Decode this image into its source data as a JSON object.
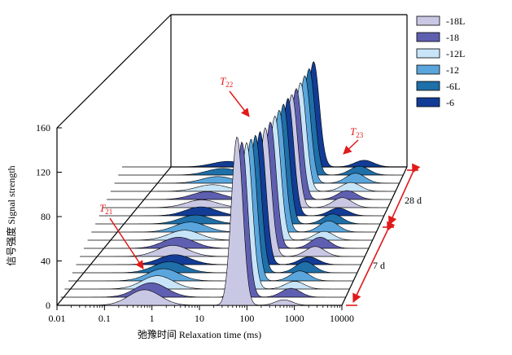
{
  "chart_data": {
    "type": "area",
    "xlabel": "弛豫时间 Relaxation time (ms)",
    "ylabel": "信号强度 Signal strength",
    "x_scale": "log",
    "xlim": [
      0.01,
      10000
    ],
    "ylim": [
      0,
      160
    ],
    "x_ticks": [
      "0.01",
      "0.1",
      "1",
      "10",
      "100",
      "1000",
      "10000"
    ],
    "y_ticks": [
      "0",
      "40",
      "80",
      "120",
      "160"
    ],
    "legend_position": "top-right",
    "legend": [
      {
        "name": "-18L",
        "color": "#c9c8e4"
      },
      {
        "name": "-18",
        "color": "#5f5fb1"
      },
      {
        "name": "-12L",
        "color": "#c8e4f8"
      },
      {
        "name": "-12",
        "color": "#5aa6dc"
      },
      {
        "name": "-6L",
        "color": "#1f6fa8"
      },
      {
        "name": "-6",
        "color": "#123c96"
      }
    ],
    "annotations": [
      {
        "text": "T",
        "sub": "21"
      },
      {
        "text": "T",
        "sub": "22"
      },
      {
        "text": "T",
        "sub": "23"
      }
    ],
    "depth_labels": [
      "7 d",
      "28 d"
    ],
    "series": [
      {
        "name": "-18L",
        "peaks": [
          {
            "t": 0.7,
            "amp": 14,
            "w": 0.33
          },
          {
            "t": 62,
            "amp": 152,
            "w": 0.12
          },
          {
            "t": 600,
            "amp": 5,
            "w": 0.18
          }
        ]
      },
      {
        "name": "-18",
        "peaks": [
          {
            "t": 0.8,
            "amp": 13,
            "w": 0.33
          },
          {
            "t": 65,
            "amp": 140,
            "w": 0.12
          },
          {
            "t": 700,
            "amp": 8,
            "w": 0.2
          }
        ]
      },
      {
        "name": "-12L",
        "peaks": [
          {
            "t": 0.9,
            "amp": 12,
            "w": 0.33
          },
          {
            "t": 68,
            "amp": 132,
            "w": 0.12
          },
          {
            "t": 700,
            "amp": 7,
            "w": 0.2
          }
        ]
      },
      {
        "name": "-12",
        "peaks": [
          {
            "t": 1.0,
            "amp": 11,
            "w": 0.33
          },
          {
            "t": 70,
            "amp": 128,
            "w": 0.12
          },
          {
            "t": 750,
            "amp": 9,
            "w": 0.2
          }
        ]
      },
      {
        "name": "-6L",
        "peaks": [
          {
            "t": 1.1,
            "amp": 10,
            "w": 0.33
          },
          {
            "t": 72,
            "amp": 124,
            "w": 0.12
          },
          {
            "t": 800,
            "amp": 10,
            "w": 0.2
          }
        ]
      },
      {
        "name": "-6",
        "peaks": [
          {
            "t": 1.2,
            "amp": 9,
            "w": 0.33
          },
          {
            "t": 75,
            "amp": 120,
            "w": 0.12
          },
          {
            "t": 800,
            "amp": 7,
            "w": 0.2
          }
        ]
      },
      {
        "name": "-18L",
        "peaks": [
          {
            "t": 0.9,
            "amp": 10,
            "w": 0.33
          },
          {
            "t": 80,
            "amp": 116,
            "w": 0.12
          },
          {
            "t": 900,
            "amp": 9,
            "w": 0.2
          }
        ]
      },
      {
        "name": "-18",
        "peaks": [
          {
            "t": 1.0,
            "amp": 10,
            "w": 0.33
          },
          {
            "t": 85,
            "amp": 114,
            "w": 0.12
          },
          {
            "t": 950,
            "amp": 10,
            "w": 0.2
          }
        ]
      },
      {
        "name": "-12L",
        "peaks": [
          {
            "t": 1.1,
            "amp": 9,
            "w": 0.33
          },
          {
            "t": 88,
            "amp": 112,
            "w": 0.12
          },
          {
            "t": 950,
            "amp": 8,
            "w": 0.2
          }
        ]
      },
      {
        "name": "-12",
        "peaks": [
          {
            "t": 1.2,
            "amp": 9,
            "w": 0.33
          },
          {
            "t": 90,
            "amp": 110,
            "w": 0.12
          },
          {
            "t": 1000,
            "amp": 10,
            "w": 0.2
          }
        ]
      },
      {
        "name": "-6L",
        "peaks": [
          {
            "t": 1.3,
            "amp": 8,
            "w": 0.33
          },
          {
            "t": 92,
            "amp": 108,
            "w": 0.12
          },
          {
            "t": 1000,
            "amp": 9,
            "w": 0.2
          }
        ]
      },
      {
        "name": "-6",
        "peaks": [
          {
            "t": 1.4,
            "amp": 8,
            "w": 0.33
          },
          {
            "t": 95,
            "amp": 106,
            "w": 0.12
          },
          {
            "t": 1100,
            "amp": 7,
            "w": 0.2
          }
        ]
      },
      {
        "name": "-18L",
        "peaks": [
          {
            "t": 1.2,
            "amp": 7,
            "w": 0.33
          },
          {
            "t": 95,
            "amp": 102,
            "w": 0.12
          },
          {
            "t": 1100,
            "amp": 9,
            "w": 0.2
          }
        ]
      },
      {
        "name": "-18",
        "peaks": [
          {
            "t": 1.3,
            "amp": 7,
            "w": 0.33
          },
          {
            "t": 98,
            "amp": 100,
            "w": 0.12
          },
          {
            "t": 1150,
            "amp": 8,
            "w": 0.2
          }
        ]
      },
      {
        "name": "-12L",
        "peaks": [
          {
            "t": 1.4,
            "amp": 6,
            "w": 0.33
          },
          {
            "t": 100,
            "amp": 98,
            "w": 0.12
          },
          {
            "t": 1150,
            "amp": 8,
            "w": 0.2
          }
        ]
      },
      {
        "name": "-12",
        "peaks": [
          {
            "t": 1.5,
            "amp": 6,
            "w": 0.33
          },
          {
            "t": 102,
            "amp": 97,
            "w": 0.12
          },
          {
            "t": 1200,
            "amp": 9,
            "w": 0.2
          }
        ]
      },
      {
        "name": "-6L",
        "peaks": [
          {
            "t": 1.6,
            "amp": 6,
            "w": 0.33
          },
          {
            "t": 105,
            "amp": 96,
            "w": 0.12
          },
          {
            "t": 1200,
            "amp": 8,
            "w": 0.2
          }
        ]
      },
      {
        "name": "-6",
        "peaks": [
          {
            "t": 1.7,
            "amp": 5,
            "w": 0.33
          },
          {
            "t": 108,
            "amp": 95,
            "w": 0.12
          },
          {
            "t": 1250,
            "amp": 6,
            "w": 0.2
          }
        ]
      }
    ]
  }
}
